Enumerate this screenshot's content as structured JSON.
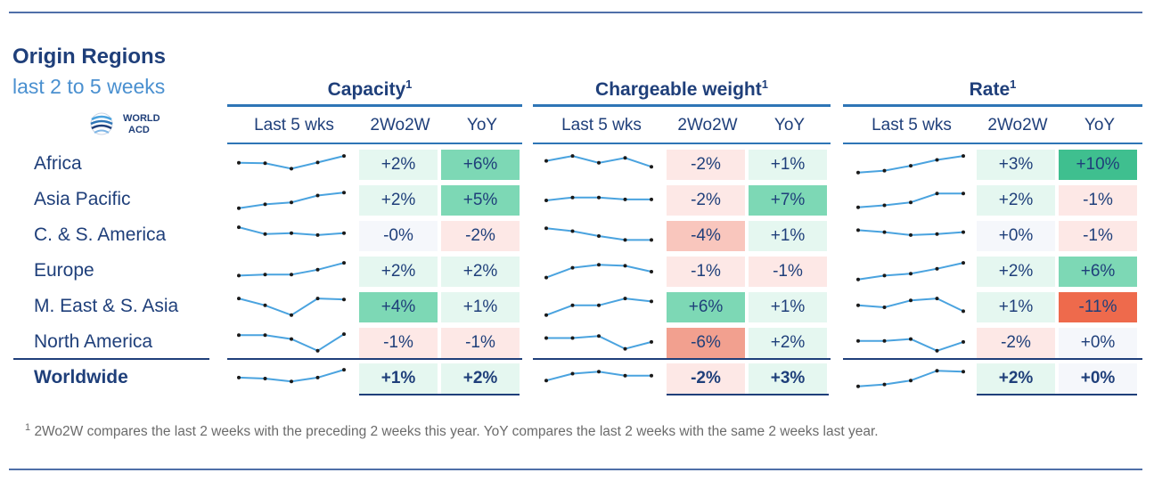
{
  "header": {
    "title": "Origin Regions",
    "subtitle": "last 2 to 5 weeks",
    "logo_line1": "WORLD",
    "logo_line2": "ACD"
  },
  "groups": [
    {
      "title": "Capacity",
      "sup": "1"
    },
    {
      "title": "Chargeable weight",
      "sup": "1"
    },
    {
      "title": "Rate",
      "sup": "1"
    }
  ],
  "column_headers": [
    "Last 5 wks",
    "2Wo2W",
    "YoY"
  ],
  "footnote": {
    "sup": "1",
    "text": "2Wo2W compares the last 2 weeks with the preceding 2 weeks this year. YoY compares the last 2 weeks with the same 2 weeks last year."
  },
  "colors": {
    "strong_pos": "#3fbf8f",
    "mid_pos": "#7dd8b5",
    "light_pos": "#c9efe0",
    "pale_pos": "#e5f7f0",
    "neutral": "#f5f7fb",
    "pale_neg": "#fde8e6",
    "light_neg": "#f9c6bd",
    "mid_neg": "#f2a08f",
    "strong_neg": "#ee6a4c",
    "line": "#4aa3df"
  },
  "chart_data": {
    "type": "table",
    "regions": [
      "Africa",
      "Asia Pacific",
      "C. & S. America",
      "Europe",
      "M. East & S. Asia",
      "North America",
      "Worldwide"
    ],
    "metrics": [
      "Capacity",
      "Chargeable weight",
      "Rate"
    ],
    "rows": [
      {
        "region": "Africa",
        "values": {
          "Capacity": {
            "2Wo2W": "+2%",
            "YoY": "+6%"
          },
          "Chargeable weight": {
            "2Wo2W": "-2%",
            "YoY": "+1%"
          },
          "Rate": {
            "2Wo2W": "+3%",
            "YoY": "+10%"
          }
        }
      },
      {
        "region": "Asia Pacific",
        "values": {
          "Capacity": {
            "2Wo2W": "+2%",
            "YoY": "+5%"
          },
          "Chargeable weight": {
            "2Wo2W": "-2%",
            "YoY": "+7%"
          },
          "Rate": {
            "2Wo2W": "+2%",
            "YoY": "-1%"
          }
        }
      },
      {
        "region": "C. & S. America",
        "values": {
          "Capacity": {
            "2Wo2W": "-0%",
            "YoY": "-2%"
          },
          "Chargeable weight": {
            "2Wo2W": "-4%",
            "YoY": "+1%"
          },
          "Rate": {
            "2Wo2W": "+0%",
            "YoY": "-1%"
          }
        }
      },
      {
        "region": "Europe",
        "values": {
          "Capacity": {
            "2Wo2W": "+2%",
            "YoY": "+2%"
          },
          "Chargeable weight": {
            "2Wo2W": "-1%",
            "YoY": "-1%"
          },
          "Rate": {
            "2Wo2W": "+2%",
            "YoY": "+6%"
          }
        }
      },
      {
        "region": "M. East & S. Asia",
        "values": {
          "Capacity": {
            "2Wo2W": "+4%",
            "YoY": "+1%"
          },
          "Chargeable weight": {
            "2Wo2W": "+6%",
            "YoY": "+1%"
          },
          "Rate": {
            "2Wo2W": "+1%",
            "YoY": "-11%"
          }
        }
      },
      {
        "region": "North America",
        "values": {
          "Capacity": {
            "2Wo2W": "-1%",
            "YoY": "-1%"
          },
          "Chargeable weight": {
            "2Wo2W": "-6%",
            "YoY": "+2%"
          },
          "Rate": {
            "2Wo2W": "-2%",
            "YoY": "+0%"
          }
        }
      },
      {
        "region": "Worldwide",
        "values": {
          "Capacity": {
            "2Wo2W": "+1%",
            "YoY": "+2%"
          },
          "Chargeable weight": {
            "2Wo2W": "-2%",
            "YoY": "+3%"
          },
          "Rate": {
            "2Wo2W": "+2%",
            "YoY": "+0%"
          }
        }
      }
    ],
    "sparklines_relative_level_0_to_1": {
      "Capacity": [
        [
          0.6,
          0.58,
          0.3,
          0.62,
          0.95
        ],
        [
          0.1,
          0.3,
          0.4,
          0.75,
          0.9
        ],
        [
          0.95,
          0.6,
          0.65,
          0.55,
          0.65
        ],
        [
          0.3,
          0.35,
          0.35,
          0.6,
          0.95
        ],
        [
          0.95,
          0.6,
          0.1,
          0.95,
          0.9
        ],
        [
          0.9,
          0.9,
          0.7,
          0.1,
          0.95
        ],
        [
          0.55,
          0.5,
          0.35,
          0.55,
          0.95
        ]
      ],
      "Chargeable weight": [
        [
          0.7,
          0.95,
          0.6,
          0.85,
          0.4
        ],
        [
          0.5,
          0.65,
          0.65,
          0.55,
          0.55
        ],
        [
          0.9,
          0.75,
          0.5,
          0.3,
          0.3
        ],
        [
          0.2,
          0.7,
          0.85,
          0.8,
          0.5
        ],
        [
          0.1,
          0.6,
          0.6,
          0.95,
          0.8
        ],
        [
          0.75,
          0.75,
          0.85,
          0.2,
          0.55
        ],
        [
          0.4,
          0.75,
          0.85,
          0.65,
          0.65
        ]
      ],
      "Rate": [
        [
          0.1,
          0.2,
          0.45,
          0.75,
          0.95
        ],
        [
          0.15,
          0.25,
          0.4,
          0.85,
          0.85
        ],
        [
          0.8,
          0.7,
          0.55,
          0.6,
          0.7
        ],
        [
          0.1,
          0.3,
          0.4,
          0.65,
          0.95
        ],
        [
          0.6,
          0.5,
          0.85,
          0.95,
          0.3
        ],
        [
          0.6,
          0.6,
          0.7,
          0.1,
          0.55
        ],
        [
          0.1,
          0.2,
          0.4,
          0.9,
          0.85
        ]
      ]
    }
  }
}
